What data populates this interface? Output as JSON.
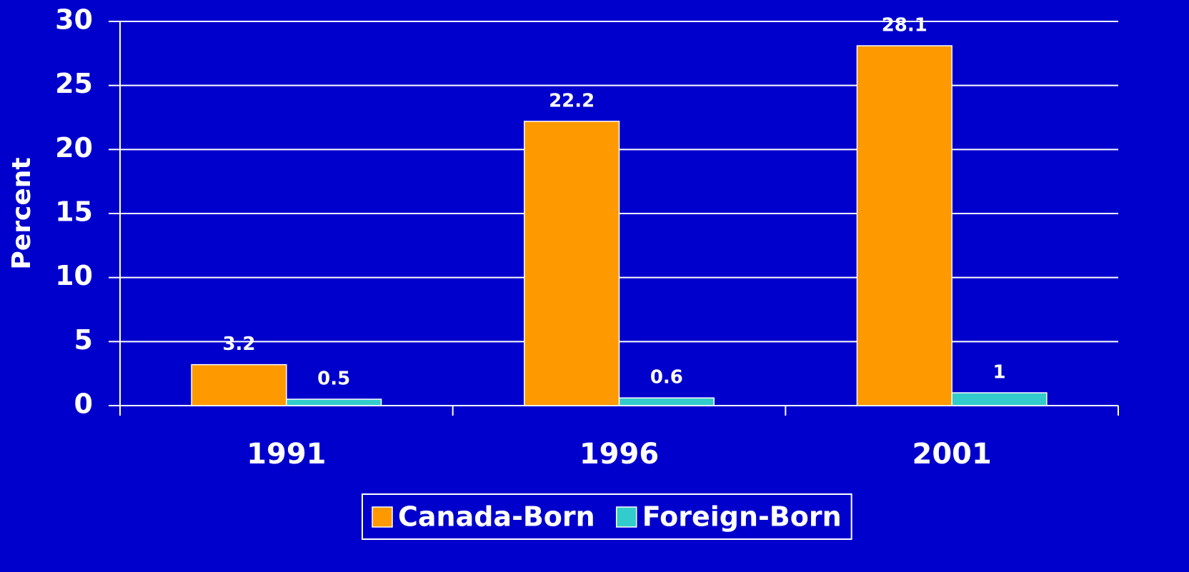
{
  "chart_data": {
    "type": "bar",
    "y_label": "Percent",
    "categories": [
      "1991",
      "1996",
      "2001"
    ],
    "series": [
      {
        "name": "Canada-Born",
        "color": "#ff9900",
        "values": [
          3.2,
          22.2,
          28.1
        ]
      },
      {
        "name": "Foreign-Born",
        "color": "#33cccc",
        "values": [
          0.5,
          0.6,
          1
        ]
      }
    ],
    "ylim": [
      0,
      30
    ],
    "yticks": [
      0,
      5,
      10,
      15,
      20,
      25,
      30
    ],
    "grid": true,
    "legend": "bottom"
  }
}
